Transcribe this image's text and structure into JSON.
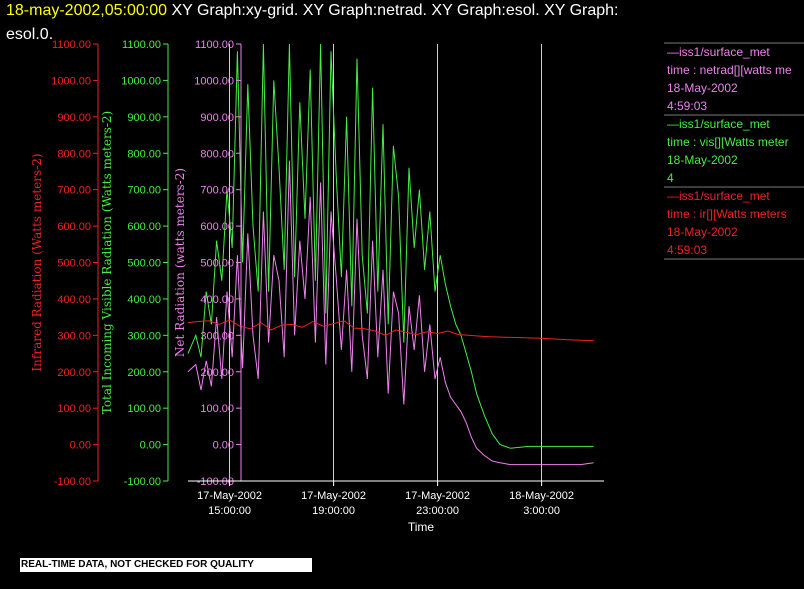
{
  "title": {
    "timestamp": "18-may-2002,05:00:00",
    "rest": "  XY Graph:xy-grid.  XY Graph:netrad.  XY Graph:esol.  XY Graph:",
    "line2": "esol.0."
  },
  "disclaimer": "REAL-TIME DATA, NOT CHECKED FOR QUALITY",
  "colors": {
    "netrad": "#ee82ee",
    "vis": "#44ee44",
    "ir": "#ee2222",
    "background": "#000000",
    "grid": "#ffffff"
  },
  "legend": [
    {
      "line1": "—iss1/surface_met",
      "line2": "time : netrad[][watts me",
      "line3": "18-May-2002",
      "line4": "4:59:03",
      "color": "#ee82ee"
    },
    {
      "line1": "—iss1/surface_met",
      "line2": "time : vis[][Watts meter",
      "line3": "18-May-2002",
      "line4": "4",
      "color": "#44ee44"
    },
    {
      "line1": "—iss1/surface_met",
      "line2": "time : ir[][Watts meters",
      "line3": "18-May-2002",
      "line4": "4:59:03",
      "color": "#ee2222"
    }
  ],
  "chart_data": {
    "type": "line",
    "xlabel": "Time",
    "x_ticks": [
      {
        "date": "17-May-2002",
        "time": "15:00:00",
        "hours": 15
      },
      {
        "date": "17-May-2002",
        "time": "19:00:00",
        "hours": 19
      },
      {
        "date": "17-May-2002",
        "time": "23:00:00",
        "hours": 23
      },
      {
        "date": "18-May-2002",
        "time": "3:00:00",
        "hours": 27
      }
    ],
    "xlim_hours": [
      13.4,
      29.4
    ],
    "ylim": [
      -100,
      1100
    ],
    "y_ticks": [
      "-100.00",
      "0.00",
      "100.00",
      "200.00",
      "300.00",
      "400.00",
      "500.00",
      "600.00",
      "700.00",
      "800.00",
      "900.00",
      "1000.00",
      "1100.00"
    ],
    "axes": [
      {
        "label": "Infrared Radiation (Watts meters-2)",
        "color": "#ee2222"
      },
      {
        "label": "Total Incoming Visible Radiation (Watts meters-2)",
        "color": "#44ee44"
      },
      {
        "label": "Net Radiation (watts meters-2)",
        "color": "#ee82ee"
      }
    ],
    "series": [
      {
        "key": "vis",
        "color": "#44ee44",
        "x": [
          13.4,
          13.7,
          13.9,
          14.1,
          14.3,
          14.5,
          14.7,
          14.9,
          15.1,
          15.3,
          15.5,
          15.7,
          15.9,
          16.1,
          16.3,
          16.5,
          16.7,
          16.9,
          17.1,
          17.3,
          17.5,
          17.7,
          17.9,
          18.1,
          18.3,
          18.5,
          18.7,
          18.9,
          19.1,
          19.3,
          19.5,
          19.7,
          19.9,
          20.1,
          20.3,
          20.5,
          20.7,
          20.9,
          21.1,
          21.3,
          21.5,
          21.7,
          21.9,
          22.1,
          22.3,
          22.5,
          22.7,
          22.9,
          23.1,
          23.3,
          23.5,
          23.7,
          23.9,
          24.1,
          24.3,
          24.5,
          24.8,
          25.1,
          25.4,
          25.8,
          26.5,
          27.5,
          28.5,
          29.0
        ],
        "y": [
          250,
          300,
          240,
          420,
          330,
          560,
          450,
          700,
          540,
          1080,
          500,
          990,
          600,
          420,
          1100,
          420,
          1000,
          760,
          480,
          1100,
          460,
          940,
          620,
          1030,
          450,
          1100,
          360,
          1080,
          740,
          460,
          900,
          380,
          1060,
          520,
          360,
          980,
          420,
          880,
          330,
          820,
          680,
          280,
          760,
          540,
          700,
          480,
          640,
          420,
          520,
          440,
          380,
          330,
          300,
          250,
          200,
          140,
          80,
          30,
          0,
          -10,
          -5,
          -5,
          -5,
          -5
        ]
      },
      {
        "key": "netrad",
        "color": "#ee82ee",
        "x": [
          13.4,
          13.7,
          13.9,
          14.1,
          14.3,
          14.5,
          14.7,
          14.9,
          15.1,
          15.3,
          15.5,
          15.7,
          15.9,
          16.1,
          16.3,
          16.5,
          16.7,
          16.9,
          17.1,
          17.3,
          17.5,
          17.7,
          17.9,
          18.1,
          18.3,
          18.5,
          18.7,
          18.9,
          19.1,
          19.3,
          19.5,
          19.7,
          19.9,
          20.1,
          20.3,
          20.5,
          20.7,
          20.9,
          21.1,
          21.3,
          21.5,
          21.7,
          21.9,
          22.1,
          22.3,
          22.5,
          22.7,
          22.9,
          23.1,
          23.3,
          23.5,
          23.7,
          23.9,
          24.1,
          24.3,
          24.5,
          24.8,
          25.1,
          25.4,
          25.8,
          26.5,
          27.5,
          28.5,
          29.0
        ],
        "y": [
          200,
          220,
          150,
          230,
          160,
          350,
          180,
          420,
          240,
          520,
          210,
          580,
          300,
          180,
          640,
          280,
          520,
          450,
          240,
          780,
          300,
          560,
          400,
          680,
          280,
          720,
          220,
          640,
          460,
          260,
          480,
          200,
          620,
          300,
          180,
          560,
          240,
          480,
          140,
          420,
          360,
          110,
          380,
          260,
          410,
          200,
          330,
          180,
          240,
          170,
          130,
          110,
          90,
          60,
          20,
          -10,
          -30,
          -45,
          -50,
          -55,
          -55,
          -55,
          -55,
          -50
        ]
      },
      {
        "key": "ir",
        "color": "#ee2222",
        "x": [
          13.4,
          13.8,
          14.2,
          14.6,
          15.0,
          15.4,
          15.8,
          16.2,
          16.6,
          17.0,
          17.4,
          17.8,
          18.2,
          18.6,
          19.0,
          19.4,
          19.8,
          20.2,
          20.6,
          21.0,
          21.4,
          21.8,
          22.2,
          22.6,
          23.0,
          23.4,
          23.8,
          24.2,
          24.6,
          25.0,
          26.0,
          27.0,
          28.0,
          29.0
        ],
        "y": [
          335,
          338,
          340,
          330,
          342,
          325,
          318,
          335,
          315,
          328,
          330,
          322,
          338,
          325,
          332,
          340,
          320,
          318,
          312,
          300,
          315,
          308,
          302,
          310,
          305,
          312,
          302,
          300,
          298,
          296,
          294,
          292,
          288,
          285
        ]
      }
    ]
  }
}
